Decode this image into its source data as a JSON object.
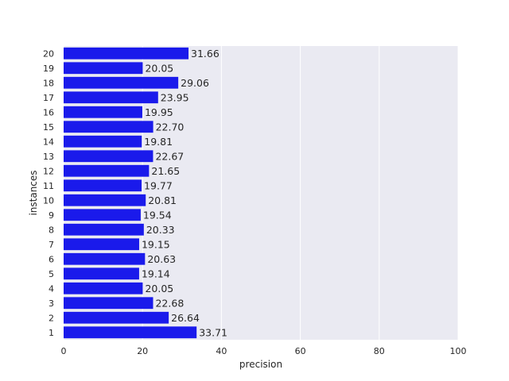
{
  "chart_data": {
    "type": "bar",
    "orientation": "horizontal",
    "xlabel": "precision",
    "ylabel": "instances",
    "xlim": [
      0,
      100
    ],
    "xticks": [
      0,
      20,
      40,
      60,
      80,
      100
    ],
    "grid": true,
    "bar_color": "#1a1aeb",
    "background_color": "#eaeaf2",
    "categories": [
      "1",
      "2",
      "3",
      "4",
      "5",
      "6",
      "7",
      "8",
      "9",
      "10",
      "11",
      "12",
      "13",
      "14",
      "15",
      "16",
      "17",
      "18",
      "19",
      "20"
    ],
    "values": [
      33.71,
      26.64,
      22.68,
      20.05,
      19.14,
      20.63,
      19.15,
      20.33,
      19.54,
      20.81,
      19.77,
      21.65,
      22.67,
      19.81,
      22.7,
      19.95,
      23.95,
      29.06,
      20.05,
      31.66
    ],
    "value_labels": [
      "33.71",
      "26.64",
      "22.68",
      "20.05",
      "19.14",
      "20.63",
      "19.15",
      "20.33",
      "19.54",
      "20.81",
      "19.77",
      "21.65",
      "22.67",
      "19.81",
      "22.70",
      "19.95",
      "23.95",
      "29.06",
      "20.05",
      "31.66"
    ]
  }
}
